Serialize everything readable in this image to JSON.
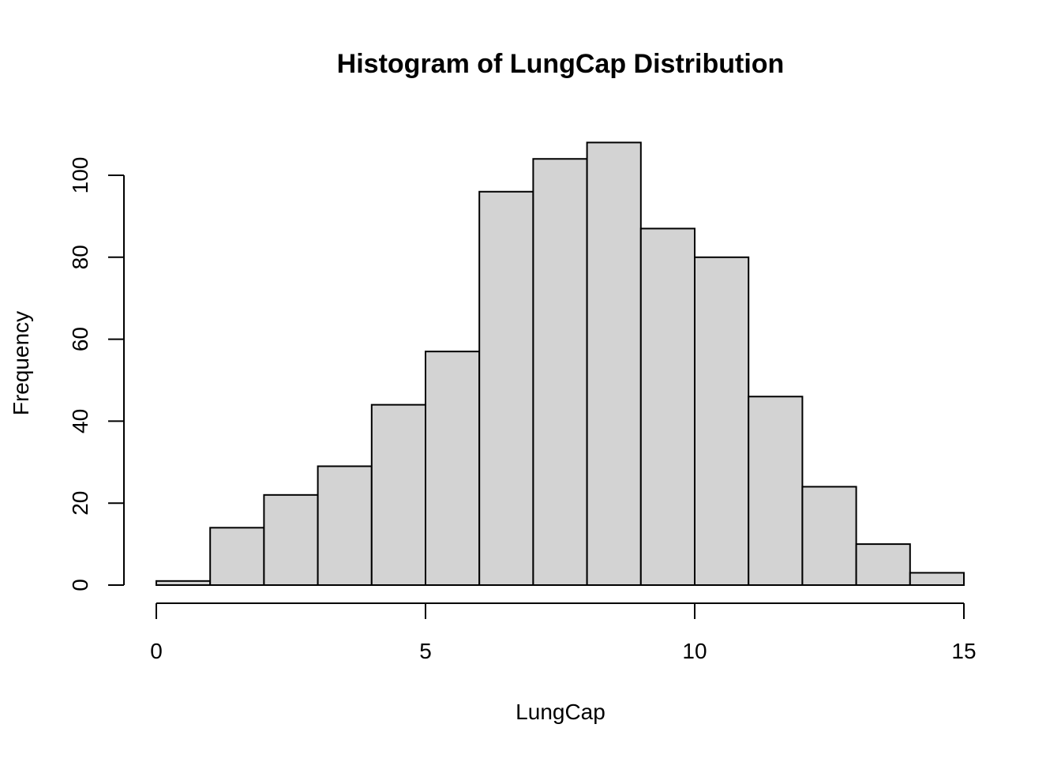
{
  "chart_data": {
    "type": "bar",
    "title": "Histogram of LungCap Distribution",
    "xlabel": "LungCap",
    "ylabel": "Frequency",
    "bin_edges": [
      0,
      1,
      2,
      3,
      4,
      5,
      6,
      7,
      8,
      9,
      10,
      11,
      12,
      13,
      14,
      15
    ],
    "values": [
      1,
      14,
      22,
      29,
      44,
      57,
      96,
      104,
      108,
      87,
      80,
      46,
      24,
      10,
      3
    ],
    "xlim": [
      0,
      15
    ],
    "ylim": [
      0,
      108
    ],
    "x_ticks": [
      0,
      5,
      10,
      15
    ],
    "x_tick_labels": [
      "0",
      "5",
      "10",
      "15"
    ],
    "y_ticks": [
      0,
      20,
      40,
      60,
      80,
      100
    ],
    "y_tick_labels": [
      "0",
      "20",
      "40",
      "60",
      "80",
      "100"
    ],
    "bar_color": "#d3d3d3",
    "border_color": "#000000",
    "grid": false
  }
}
